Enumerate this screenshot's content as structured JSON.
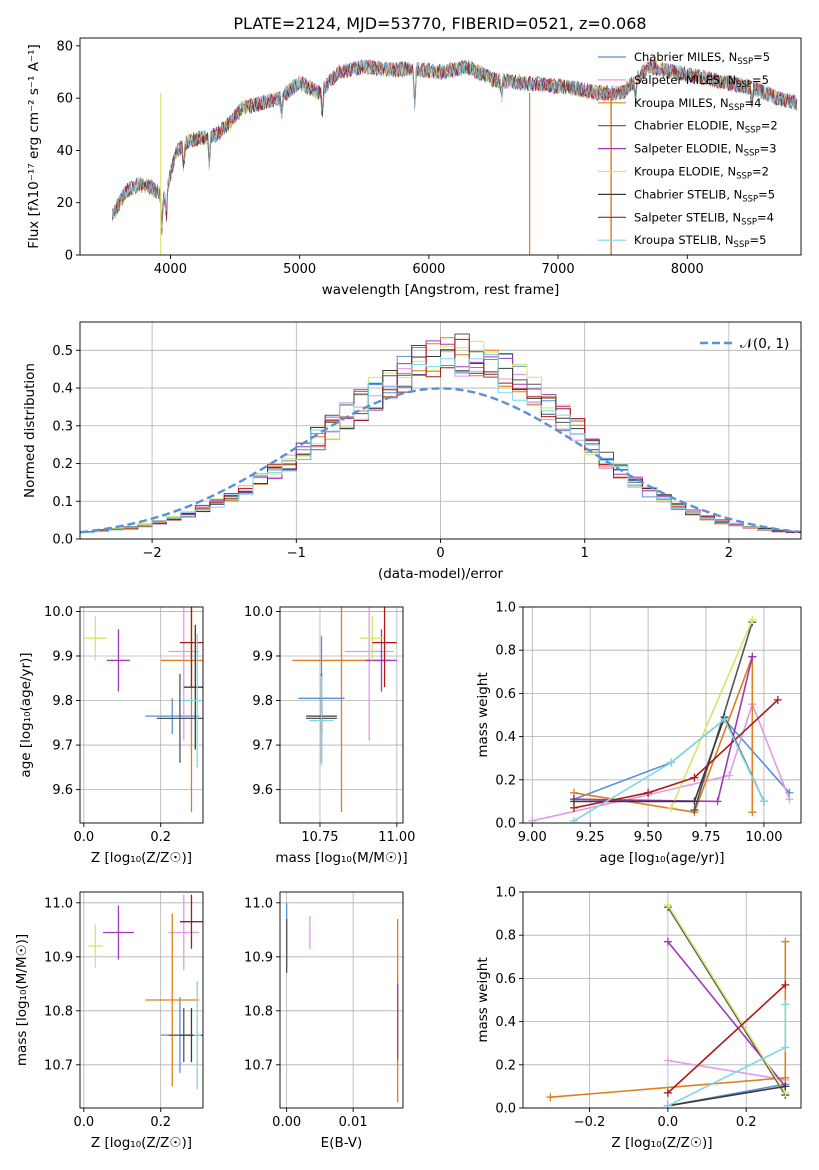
{
  "title": "PLATE=2124, MJD=53770, FIBERID=0521, z=0.068",
  "colors": [
    "#5b8fd6",
    "#e09be6",
    "#e07f1f",
    "#555555",
    "#a03ab5",
    "#d9e46a",
    "#3b3b3b",
    "#b01818",
    "#7fd6e6"
  ],
  "legend": [
    {
      "name": "Chabrier MILES",
      "nssp": "5"
    },
    {
      "name": "Salpeter MILES",
      "nssp": "5"
    },
    {
      "name": "Kroupa MILES",
      "nssp": "4"
    },
    {
      "name": "Chabrier ELODIE",
      "nssp": "2"
    },
    {
      "name": "Salpeter ELODIE",
      "nssp": "3"
    },
    {
      "name": "Kroupa ELODIE",
      "nssp": "2"
    },
    {
      "name": "Chabrier STELIB",
      "nssp": "5"
    },
    {
      "name": "Salpeter STELIB",
      "nssp": "4"
    },
    {
      "name": "Kroupa STELIB",
      "nssp": "5"
    }
  ],
  "legend_nssp_prefix": "N",
  "legend_nssp_sub": "SSP",
  "chart_data": [
    {
      "id": "spectrum",
      "type": "line",
      "xlabel": "wavelength [Angstrom, rest frame]",
      "ylabel": "Flux [fλ10⁻¹⁷ erg cm⁻² s⁻¹ A⁻¹]",
      "xlim": [
        3300,
        8880
      ],
      "ylim": [
        0,
        83
      ],
      "xticks": [
        4000,
        5000,
        6000,
        7000,
        8000
      ],
      "yticks": [
        0,
        20,
        40,
        60,
        80
      ],
      "legend_position": "upper-right",
      "continuum": {
        "x": [
          3550,
          3650,
          3750,
          3850,
          3950,
          4050,
          4150,
          4250,
          4350,
          4450,
          4550,
          4700,
          4850,
          5000,
          5150,
          5300,
          5500,
          5700,
          5900,
          6100,
          6300,
          6500,
          6700,
          6900,
          7100,
          7300,
          7500,
          7700,
          7900,
          8100,
          8300,
          8500,
          8700,
          8850
        ],
        "y": [
          15,
          24,
          27,
          26,
          22,
          40,
          44,
          45,
          46,
          50,
          56,
          58,
          60,
          66,
          62,
          70,
          72,
          71,
          71,
          70,
          72,
          67,
          66,
          65,
          64,
          62,
          62,
          72,
          70,
          68,
          66,
          64,
          60,
          58
        ]
      }
    },
    {
      "id": "residuals",
      "type": "histogram",
      "xlabel": "(data-model)/error",
      "ylabel": "Normed distribution",
      "xlim": [
        -2.5,
        2.5
      ],
      "ylim": [
        0,
        0.575
      ],
      "xticks": [
        -2,
        -1,
        0,
        1,
        2
      ],
      "yticks": [
        0.0,
        0.1,
        0.2,
        0.3,
        0.4,
        0.5
      ],
      "reference_label": "𝒩(0, 1)",
      "bin_edges_start": -2.5,
      "bin_width": 0.1,
      "baseline": [
        0.018,
        0.022,
        0.026,
        0.03,
        0.036,
        0.045,
        0.055,
        0.066,
        0.08,
        0.095,
        0.112,
        0.132,
        0.155,
        0.18,
        0.205,
        0.235,
        0.265,
        0.295,
        0.325,
        0.355,
        0.385,
        0.415,
        0.44,
        0.465,
        0.48,
        0.49,
        0.485,
        0.47,
        0.455,
        0.44,
        0.415,
        0.385,
        0.355,
        0.32,
        0.285,
        0.25,
        0.21,
        0.18,
        0.15,
        0.125,
        0.105,
        0.085,
        0.07,
        0.055,
        0.046,
        0.038,
        0.03,
        0.026,
        0.022,
        0.02
      ]
    },
    {
      "id": "age-vs-Z",
      "type": "scatter",
      "xlabel": "Z [log₁₀(Z/Z☉)]",
      "ylabel": "age  [log₁₀(age/yr)]",
      "xlim": [
        -0.01,
        0.31
      ],
      "ylim": [
        9.525,
        10.01
      ],
      "xticks": [
        0.0,
        0.2
      ],
      "yticks": [
        9.6,
        9.7,
        9.8,
        9.9,
        10.0
      ],
      "points": [
        {
          "x": 0.23,
          "y": 9.765,
          "xe": 0.07,
          "ye": 0.04
        },
        {
          "x": 0.26,
          "y": 9.91,
          "xe": 0.04,
          "ye": 0.2
        },
        {
          "x": 0.28,
          "y": 9.89,
          "xe": 0.08,
          "ye": 0.34
        },
        {
          "x": 0.25,
          "y": 9.76,
          "xe": 0.06,
          "ye": 0.1
        },
        {
          "x": 0.09,
          "y": 9.89,
          "xe": 0.03,
          "ye": 0.07
        },
        {
          "x": 0.03,
          "y": 9.94,
          "xe": 0.03,
          "ye": 0.05
        },
        {
          "x": 0.29,
          "y": 9.83,
          "xe": 0.03,
          "ye": 0.14
        },
        {
          "x": 0.28,
          "y": 9.93,
          "xe": 0.03,
          "ye": 0.1
        },
        {
          "x": 0.295,
          "y": 9.8,
          "xe": 0.04,
          "ye": 0.15
        }
      ]
    },
    {
      "id": "age-vs-mass",
      "type": "scatter",
      "xlabel": "mass [log₁₀(M/M☉)]",
      "ylabel": "",
      "xlim": [
        10.62,
        11.02
      ],
      "ylim": [
        9.525,
        10.01
      ],
      "xticks": [
        10.75,
        11.0
      ],
      "yticks": [
        9.6,
        9.7,
        9.8,
        9.9,
        10.0
      ],
      "points": [
        {
          "x": 10.755,
          "y": 9.805,
          "xe": 0.075,
          "ye": 0.14
        },
        {
          "x": 10.91,
          "y": 9.91,
          "xe": 0.08,
          "ye": 0.2
        },
        {
          "x": 10.82,
          "y": 9.89,
          "xe": 0.16,
          "ye": 0.34
        },
        {
          "x": 10.755,
          "y": 9.76,
          "xe": 0.05,
          "ye": 0.1
        },
        {
          "x": 10.95,
          "y": 9.89,
          "xe": 0.05,
          "ye": 0.07
        },
        {
          "x": 10.92,
          "y": 9.94,
          "xe": 0.04,
          "ye": 0.05
        },
        {
          "x": 10.755,
          "y": 9.765,
          "xe": 0.05,
          "ye": 0.04
        },
        {
          "x": 10.96,
          "y": 9.93,
          "xe": 0.04,
          "ye": 0.1
        },
        {
          "x": 10.755,
          "y": 9.755,
          "xe": 0.04,
          "ye": 0.1
        }
      ]
    },
    {
      "id": "weight-vs-age",
      "type": "line",
      "xlabel": "age  [log₁₀(age/yr)]",
      "ylabel": "mass weight",
      "xlim": [
        8.96,
        10.16
      ],
      "ylim": [
        0,
        1.0
      ],
      "xticks": [
        9.0,
        9.25,
        9.5,
        9.75,
        10.0
      ],
      "yticks": [
        0.0,
        0.2,
        0.4,
        0.6,
        0.8,
        1.0
      ],
      "series": [
        {
          "x": [
            9.18,
            9.6,
            9.83,
            10.11
          ],
          "y": [
            0.11,
            0.28,
            0.48,
            0.14
          ]
        },
        {
          "x": [
            9.0,
            9.5,
            9.85,
            9.95,
            10.11
          ],
          "y": [
            0.01,
            0.13,
            0.22,
            0.55,
            0.11
          ]
        },
        {
          "x": [
            9.18,
            9.7,
            9.95,
            9.95
          ],
          "y": [
            0.14,
            0.05,
            0.77,
            0.05
          ]
        },
        {
          "x": [
            9.7,
            9.95
          ],
          "y": [
            0.06,
            0.93
          ]
        },
        {
          "x": [
            9.18,
            9.8,
            9.95
          ],
          "y": [
            0.11,
            0.1,
            0.77
          ]
        },
        {
          "x": [
            9.6,
            9.95
          ],
          "y": [
            0.07,
            0.94
          ]
        },
        {
          "x": [
            9.18,
            9.7,
            9.83,
            10.0
          ],
          "y": [
            0.1,
            0.1,
            0.49,
            0.1
          ]
        },
        {
          "x": [
            9.18,
            9.5,
            9.7,
            10.06
          ],
          "y": [
            0.07,
            0.14,
            0.21,
            0.57
          ]
        },
        {
          "x": [
            9.18,
            9.6,
            9.83,
            10.0
          ],
          "y": [
            0.01,
            0.28,
            0.48,
            0.1
          ]
        }
      ]
    },
    {
      "id": "mass-vs-Z",
      "type": "scatter",
      "xlabel": "Z [log₁₀(Z/Z☉)]",
      "ylabel": "mass [log₁₀(M/M☉)]",
      "xlim": [
        -0.01,
        0.31
      ],
      "ylim": [
        10.62,
        11.02
      ],
      "xticks": [
        0.0,
        0.2
      ],
      "yticks": [
        10.7,
        10.8,
        10.9,
        11.0
      ],
      "points": [
        {
          "x": 0.25,
          "y": 10.755,
          "xe": 0.05,
          "ye": 0.07
        },
        {
          "x": 0.26,
          "y": 10.945,
          "xe": 0.04,
          "ye": 0.07
        },
        {
          "x": 0.23,
          "y": 10.82,
          "xe": 0.07,
          "ye": 0.16
        },
        {
          "x": 0.26,
          "y": 10.755,
          "xe": 0.04,
          "ye": 0.05
        },
        {
          "x": 0.09,
          "y": 10.945,
          "xe": 0.04,
          "ye": 0.05
        },
        {
          "x": 0.03,
          "y": 10.92,
          "xe": 0.02,
          "ye": 0.04
        },
        {
          "x": 0.28,
          "y": 10.755,
          "xe": 0.03,
          "ye": 0.05
        },
        {
          "x": 0.28,
          "y": 10.965,
          "xe": 0.03,
          "ye": 0.05
        },
        {
          "x": 0.295,
          "y": 10.755,
          "xe": 0.01,
          "ye": 0.1
        }
      ]
    },
    {
      "id": "mass-vs-ebv",
      "type": "scatter",
      "xlabel": "E(B-V)",
      "ylabel": "",
      "xlim": [
        -0.001,
        0.0175
      ],
      "ylim": [
        10.62,
        11.02
      ],
      "xticks": [
        0.0,
        0.01
      ],
      "yticks": [
        10.7,
        10.8,
        10.9,
        11.0
      ],
      "points": [
        {
          "x": 0.0,
          "y": 10.94,
          "xe": 0.0,
          "ye": 0.06
        },
        {
          "x": 0.0035,
          "y": 10.945,
          "xe": 0.0,
          "ye": 0.03
        },
        {
          "x": 0.0167,
          "y": 10.8,
          "xe": 0.0,
          "ye": 0.17
        },
        {
          "x": 0.0,
          "y": 10.92,
          "xe": 0.0,
          "ye": 0.05
        },
        {
          "x": 0.0167,
          "y": 10.78,
          "xe": 0.0,
          "ye": 0.07
        }
      ]
    },
    {
      "id": "weight-vs-Z",
      "type": "line",
      "xlabel": "Z [log₁₀(Z/Z☉)]",
      "ylabel": "mass weight",
      "xlim": [
        -0.37,
        0.34
      ],
      "ylim": [
        0,
        1.0
      ],
      "xticks": [
        -0.2,
        0.0,
        0.2
      ],
      "yticks": [
        0.0,
        0.2,
        0.4,
        0.6,
        0.8,
        1.0
      ],
      "series": [
        {
          "x": [
            0.0,
            0.3
          ],
          "y": [
            0.01,
            0.11
          ]
        },
        {
          "x": [
            0.0,
            0.3
          ],
          "y": [
            0.22,
            0.13
          ]
        },
        {
          "x": [
            -0.3,
            0.3,
            0.3
          ],
          "y": [
            0.05,
            0.14,
            0.77
          ]
        },
        {
          "x": [
            0.0,
            0.3
          ],
          "y": [
            0.93,
            0.06
          ]
        },
        {
          "x": [
            0.0,
            0.3
          ],
          "y": [
            0.77,
            0.1
          ]
        },
        {
          "x": [
            0.0,
            0.3
          ],
          "y": [
            0.94,
            0.07
          ]
        },
        {
          "x": [
            0.0,
            0.3
          ],
          "y": [
            0.01,
            0.1
          ]
        },
        {
          "x": [
            0.0,
            0.3
          ],
          "y": [
            0.07,
            0.57
          ]
        },
        {
          "x": [
            0.0,
            0.3,
            0.3
          ],
          "y": [
            0.01,
            0.28,
            0.48
          ]
        }
      ]
    }
  ]
}
